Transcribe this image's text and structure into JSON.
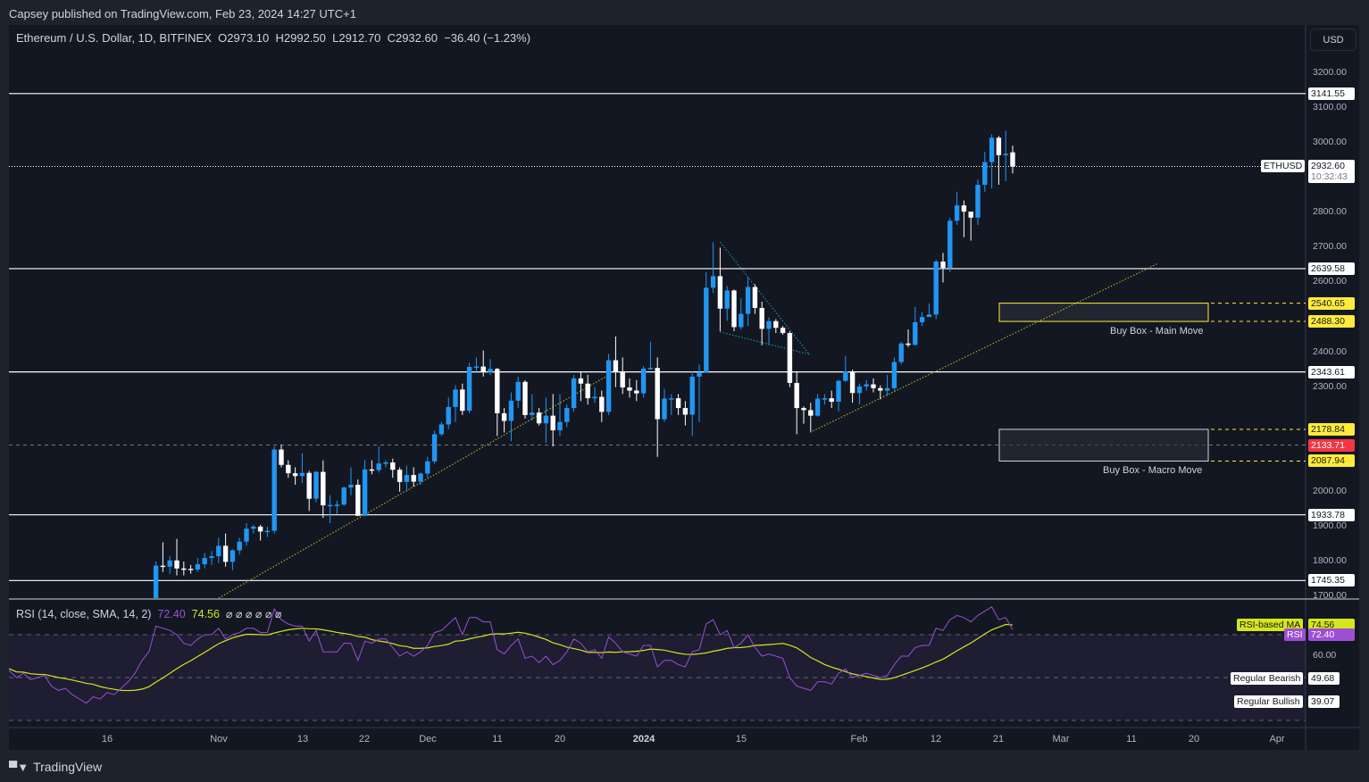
{
  "published": "Capsey published on TradingView.com, Feb 23, 2024 14:27 UTC+1",
  "legend": {
    "symbol": "Ethereum / U.S. Dollar, 1D, BITFINEX",
    "open": "O2973.10",
    "high": "H2992.50",
    "low": "L2912.70",
    "close": "C2932.60",
    "change": "−36.40 (−1.23%)"
  },
  "currency": "USD",
  "brand": "TradingView",
  "rsi_legend": {
    "title": "RSI (14, close, SMA, 14, 2)",
    "rsi": "72.40",
    "ma": "74.56",
    "extras": "⌀ ⌀ ⌀ ⌀ ⌀ ⌀"
  },
  "price_axis": [
    "3200.00",
    "3100.00",
    "3000.00",
    "2800.00",
    "2700.00",
    "2600.00",
    "2400.00",
    "2300.00",
    "2000.00",
    "1900.00",
    "1800.00",
    "1700.00"
  ],
  "price_axis_values": [
    3200,
    3100,
    3000,
    2800,
    2700,
    2600,
    2400,
    2300,
    2000,
    1900,
    1800,
    1700
  ],
  "price_tags": {
    "current": {
      "symbol": "ETHUSD",
      "price": "2932.60",
      "countdown": "10:32:43"
    },
    "lines": [
      "3141.55",
      "2639.58",
      "2343.61",
      "1933.78",
      "1745.35"
    ],
    "yellow": [
      "2540.65",
      "2488.30",
      "2178.84",
      "2087.94"
    ],
    "red": "2133.71"
  },
  "boxes": {
    "main": "Buy Box - Main Move",
    "macro": "Buy Box - Macro Move"
  },
  "rsi_axis": {
    "sixty": "60.00",
    "ma_label": "RSI-based MA",
    "ma_value": "74.56",
    "rsi_label": "RSI",
    "rsi_value": "72.40",
    "bearish_label": "Regular Bearish",
    "bearish_value": "49.68",
    "bullish_label": "Regular Bullish",
    "bullish_value": "39.07"
  },
  "time_axis": [
    "16",
    "Nov",
    "13",
    "22",
    "Dec",
    "11",
    "20",
    "2024",
    "15",
    "Feb",
    "12",
    "21",
    "Mar",
    "11",
    "20",
    "Apr"
  ],
  "colors": {
    "up": "#2196f3",
    "down": "#ffffff",
    "bg": "#131722",
    "rsi": "#9c4fd4",
    "ma": "#d4e61c",
    "yellow": "#ffeb3b",
    "red": "#f23645"
  },
  "chart_data": {
    "type": "candlestick",
    "title": "Ethereum / U.S. Dollar, 1D, BITFINEX",
    "ylim": [
      1700,
      3300
    ],
    "first_candle_day_index": 22,
    "candles": [
      [
        1670,
        1800,
        1660,
        1788
      ],
      [
        1788,
        1855,
        1770,
        1785
      ],
      [
        1785,
        1815,
        1765,
        1803
      ],
      [
        1803,
        1865,
        1760,
        1780
      ],
      [
        1780,
        1800,
        1760,
        1779
      ],
      [
        1779,
        1790,
        1765,
        1777
      ],
      [
        1777,
        1810,
        1770,
        1792
      ],
      [
        1792,
        1825,
        1780,
        1810
      ],
      [
        1810,
        1830,
        1790,
        1815
      ],
      [
        1815,
        1868,
        1795,
        1845
      ],
      [
        1845,
        1880,
        1785,
        1799
      ],
      [
        1799,
        1835,
        1775,
        1832
      ],
      [
        1832,
        1868,
        1820,
        1857
      ],
      [
        1857,
        1910,
        1845,
        1894
      ],
      [
        1894,
        1905,
        1880,
        1900
      ],
      [
        1900,
        1905,
        1860,
        1886
      ],
      [
        1886,
        1900,
        1870,
        1888
      ],
      [
        1888,
        2130,
        1880,
        2121
      ],
      [
        2121,
        2135,
        2070,
        2077
      ],
      [
        2077,
        2090,
        2040,
        2053
      ],
      [
        2053,
        2070,
        2020,
        2045
      ],
      [
        2045,
        2110,
        2025,
        2054
      ],
      [
        2054,
        2060,
        1945,
        1980
      ],
      [
        1980,
        2060,
        1970,
        2057
      ],
      [
        2057,
        2090,
        1925,
        1961
      ],
      [
        1961,
        1990,
        1910,
        1962
      ],
      [
        1962,
        1975,
        1935,
        1963
      ],
      [
        1963,
        2015,
        1960,
        2012
      ],
      [
        2012,
        2070,
        1990,
        2020
      ],
      [
        2020,
        2035,
        1930,
        1931
      ],
      [
        1931,
        2090,
        1930,
        2064
      ],
      [
        2064,
        2090,
        2050,
        2062
      ],
      [
        2062,
        2130,
        2055,
        2081
      ],
      [
        2081,
        2090,
        2070,
        2084
      ],
      [
        2084,
        2095,
        2040,
        2063
      ],
      [
        2063,
        2070,
        2000,
        2028
      ],
      [
        2028,
        2075,
        2000,
        2048
      ],
      [
        2048,
        2070,
        2015,
        2029
      ],
      [
        2029,
        2055,
        2020,
        2052
      ],
      [
        2052,
        2100,
        2040,
        2087
      ],
      [
        2087,
        2175,
        2080,
        2165
      ],
      [
        2165,
        2200,
        2160,
        2193
      ],
      [
        2193,
        2270,
        2180,
        2243
      ],
      [
        2243,
        2305,
        2200,
        2293
      ],
      [
        2293,
        2310,
        2220,
        2232
      ],
      [
        2232,
        2370,
        2225,
        2358
      ],
      [
        2358,
        2385,
        2340,
        2359
      ],
      [
        2359,
        2405,
        2330,
        2343
      ],
      [
        2343,
        2380,
        2335,
        2352
      ],
      [
        2352,
        2355,
        2160,
        2225
      ],
      [
        2225,
        2240,
        2170,
        2203
      ],
      [
        2203,
        2285,
        2145,
        2261
      ],
      [
        2261,
        2330,
        2240,
        2315
      ],
      [
        2315,
        2320,
        2210,
        2220
      ],
      [
        2220,
        2280,
        2205,
        2227
      ],
      [
        2227,
        2240,
        2190,
        2196
      ],
      [
        2196,
        2270,
        2140,
        2218
      ],
      [
        2218,
        2280,
        2130,
        2176
      ],
      [
        2176,
        2280,
        2160,
        2200
      ],
      [
        2200,
        2250,
        2185,
        2240
      ],
      [
        2240,
        2335,
        2230,
        2325
      ],
      [
        2325,
        2345,
        2260,
        2310
      ],
      [
        2310,
        2335,
        2250,
        2268
      ],
      [
        2268,
        2300,
        2255,
        2272
      ],
      [
        2272,
        2290,
        2200,
        2229
      ],
      [
        2229,
        2395,
        2220,
        2377
      ],
      [
        2377,
        2445,
        2300,
        2344
      ],
      [
        2344,
        2385,
        2280,
        2299
      ],
      [
        2299,
        2325,
        2270,
        2290
      ],
      [
        2290,
        2320,
        2260,
        2282
      ],
      [
        2282,
        2360,
        2270,
        2353
      ],
      [
        2353,
        2430,
        2350,
        2355
      ],
      [
        2355,
        2385,
        2100,
        2208
      ],
      [
        2208,
        2295,
        2200,
        2267
      ],
      [
        2267,
        2280,
        2220,
        2268
      ],
      [
        2268,
        2280,
        2220,
        2240
      ],
      [
        2240,
        2260,
        2190,
        2221
      ],
      [
        2221,
        2345,
        2160,
        2330
      ],
      [
        2330,
        2365,
        2200,
        2343
      ],
      [
        2343,
        2630,
        2340,
        2585
      ],
      [
        2585,
        2715,
        2570,
        2618
      ],
      [
        2618,
        2700,
        2460,
        2525
      ],
      [
        2525,
        2590,
        2490,
        2577
      ],
      [
        2577,
        2580,
        2460,
        2472
      ],
      [
        2472,
        2555,
        2465,
        2510
      ],
      [
        2510,
        2615,
        2475,
        2587
      ],
      [
        2587,
        2595,
        2510,
        2527
      ],
      [
        2527,
        2545,
        2420,
        2467
      ],
      [
        2467,
        2500,
        2420,
        2489
      ],
      [
        2489,
        2495,
        2455,
        2470
      ],
      [
        2470,
        2475,
        2450,
        2455
      ],
      [
        2455,
        2460,
        2300,
        2312
      ],
      [
        2312,
        2345,
        2165,
        2240
      ],
      [
        2240,
        2245,
        2195,
        2234
      ],
      [
        2234,
        2255,
        2170,
        2218
      ],
      [
        2218,
        2280,
        2215,
        2267
      ],
      [
        2267,
        2280,
        2250,
        2268
      ],
      [
        2268,
        2290,
        2240,
        2258
      ],
      [
        2258,
        2320,
        2230,
        2318
      ],
      [
        2318,
        2390,
        2315,
        2345
      ],
      [
        2345,
        2350,
        2255,
        2283
      ],
      [
        2283,
        2310,
        2250,
        2302
      ],
      [
        2302,
        2320,
        2290,
        2308
      ],
      [
        2308,
        2325,
        2285,
        2297
      ],
      [
        2297,
        2305,
        2265,
        2290
      ],
      [
        2290,
        2335,
        2275,
        2297
      ],
      [
        2297,
        2385,
        2290,
        2372
      ],
      [
        2372,
        2430,
        2365,
        2425
      ],
      [
        2425,
        2465,
        2415,
        2421
      ],
      [
        2421,
        2530,
        2420,
        2486
      ],
      [
        2486,
        2515,
        2475,
        2501
      ],
      [
        2501,
        2540,
        2505,
        2508
      ],
      [
        2508,
        2665,
        2495,
        2660
      ],
      [
        2660,
        2685,
        2600,
        2642
      ],
      [
        2642,
        2785,
        2630,
        2777
      ],
      [
        2777,
        2860,
        2765,
        2821
      ],
      [
        2821,
        2835,
        2730,
        2803
      ],
      [
        2803,
        2800,
        2720,
        2786
      ],
      [
        2786,
        2895,
        2765,
        2880
      ],
      [
        2880,
        2975,
        2860,
        2945
      ],
      [
        2945,
        3025,
        2870,
        3015
      ],
      [
        3015,
        3020,
        2880,
        2965
      ],
      [
        2965,
        3035,
        2890,
        2969
      ],
      [
        2973.1,
        2992.5,
        2912.7,
        2932.6
      ]
    ],
    "horizontal_levels": [
      3141.55,
      2639.58,
      2343.61,
      1933.78,
      1745.35
    ],
    "current_price": 2932.6,
    "red_level": 2133.71,
    "buy_boxes": [
      {
        "label": "Buy Box - Main Move",
        "low": 2488.3,
        "high": 2540.65
      },
      {
        "label": "Buy Box - Macro Move",
        "low": 2087.94,
        "high": 2178.84
      }
    ],
    "trendlines": [
      {
        "from": [
          31,
          1695
        ],
        "to": [
          86.8,
          2332
        ],
        "color": "yellow"
      },
      {
        "from": [
          116.3,
          2174
        ],
        "to": [
          165.9,
          2655
        ],
        "color": "yellow"
      },
      {
        "from": [
          103,
          2716
        ],
        "to": [
          115.8,
          2394
        ],
        "color": "cyan"
      },
      {
        "from": [
          103,
          2458
        ],
        "to": [
          115.8,
          2394
        ],
        "color": "cyan"
      }
    ],
    "rsi": {
      "period": 14,
      "ma_period": 14,
      "levels": [
        70,
        50,
        30
      ],
      "values": [
        55,
        53,
        50,
        52,
        49,
        50,
        51,
        46,
        44,
        45,
        42,
        40,
        38,
        41,
        40,
        43,
        42,
        45,
        48,
        52,
        58,
        62,
        74,
        73,
        72,
        70,
        66,
        65,
        68,
        70,
        70,
        73,
        68,
        70,
        71,
        73,
        73,
        71,
        71,
        82,
        77,
        75,
        74,
        74,
        67,
        72,
        62,
        62,
        62,
        66,
        66,
        58,
        67,
        66,
        68,
        68,
        64,
        60,
        62,
        60,
        62,
        65,
        71,
        72,
        75,
        78,
        70,
        78,
        78,
        76,
        76,
        63,
        61,
        65,
        68,
        59,
        60,
        57,
        60,
        56,
        58,
        62,
        68,
        66,
        62,
        63,
        59,
        69,
        66,
        62,
        61,
        60,
        65,
        65,
        55,
        58,
        58,
        56,
        55,
        62,
        63,
        75,
        77,
        70,
        72,
        64,
        66,
        70,
        64,
        60,
        61,
        60,
        59,
        50,
        46,
        45,
        44,
        48,
        48,
        47,
        52,
        54,
        50,
        51,
        52,
        51,
        50,
        51,
        56,
        60,
        60,
        64,
        65,
        65,
        73,
        72,
        77,
        79,
        78,
        76,
        79,
        81,
        83,
        77,
        78,
        72.4
      ],
      "ma_last": 74.56
    }
  }
}
